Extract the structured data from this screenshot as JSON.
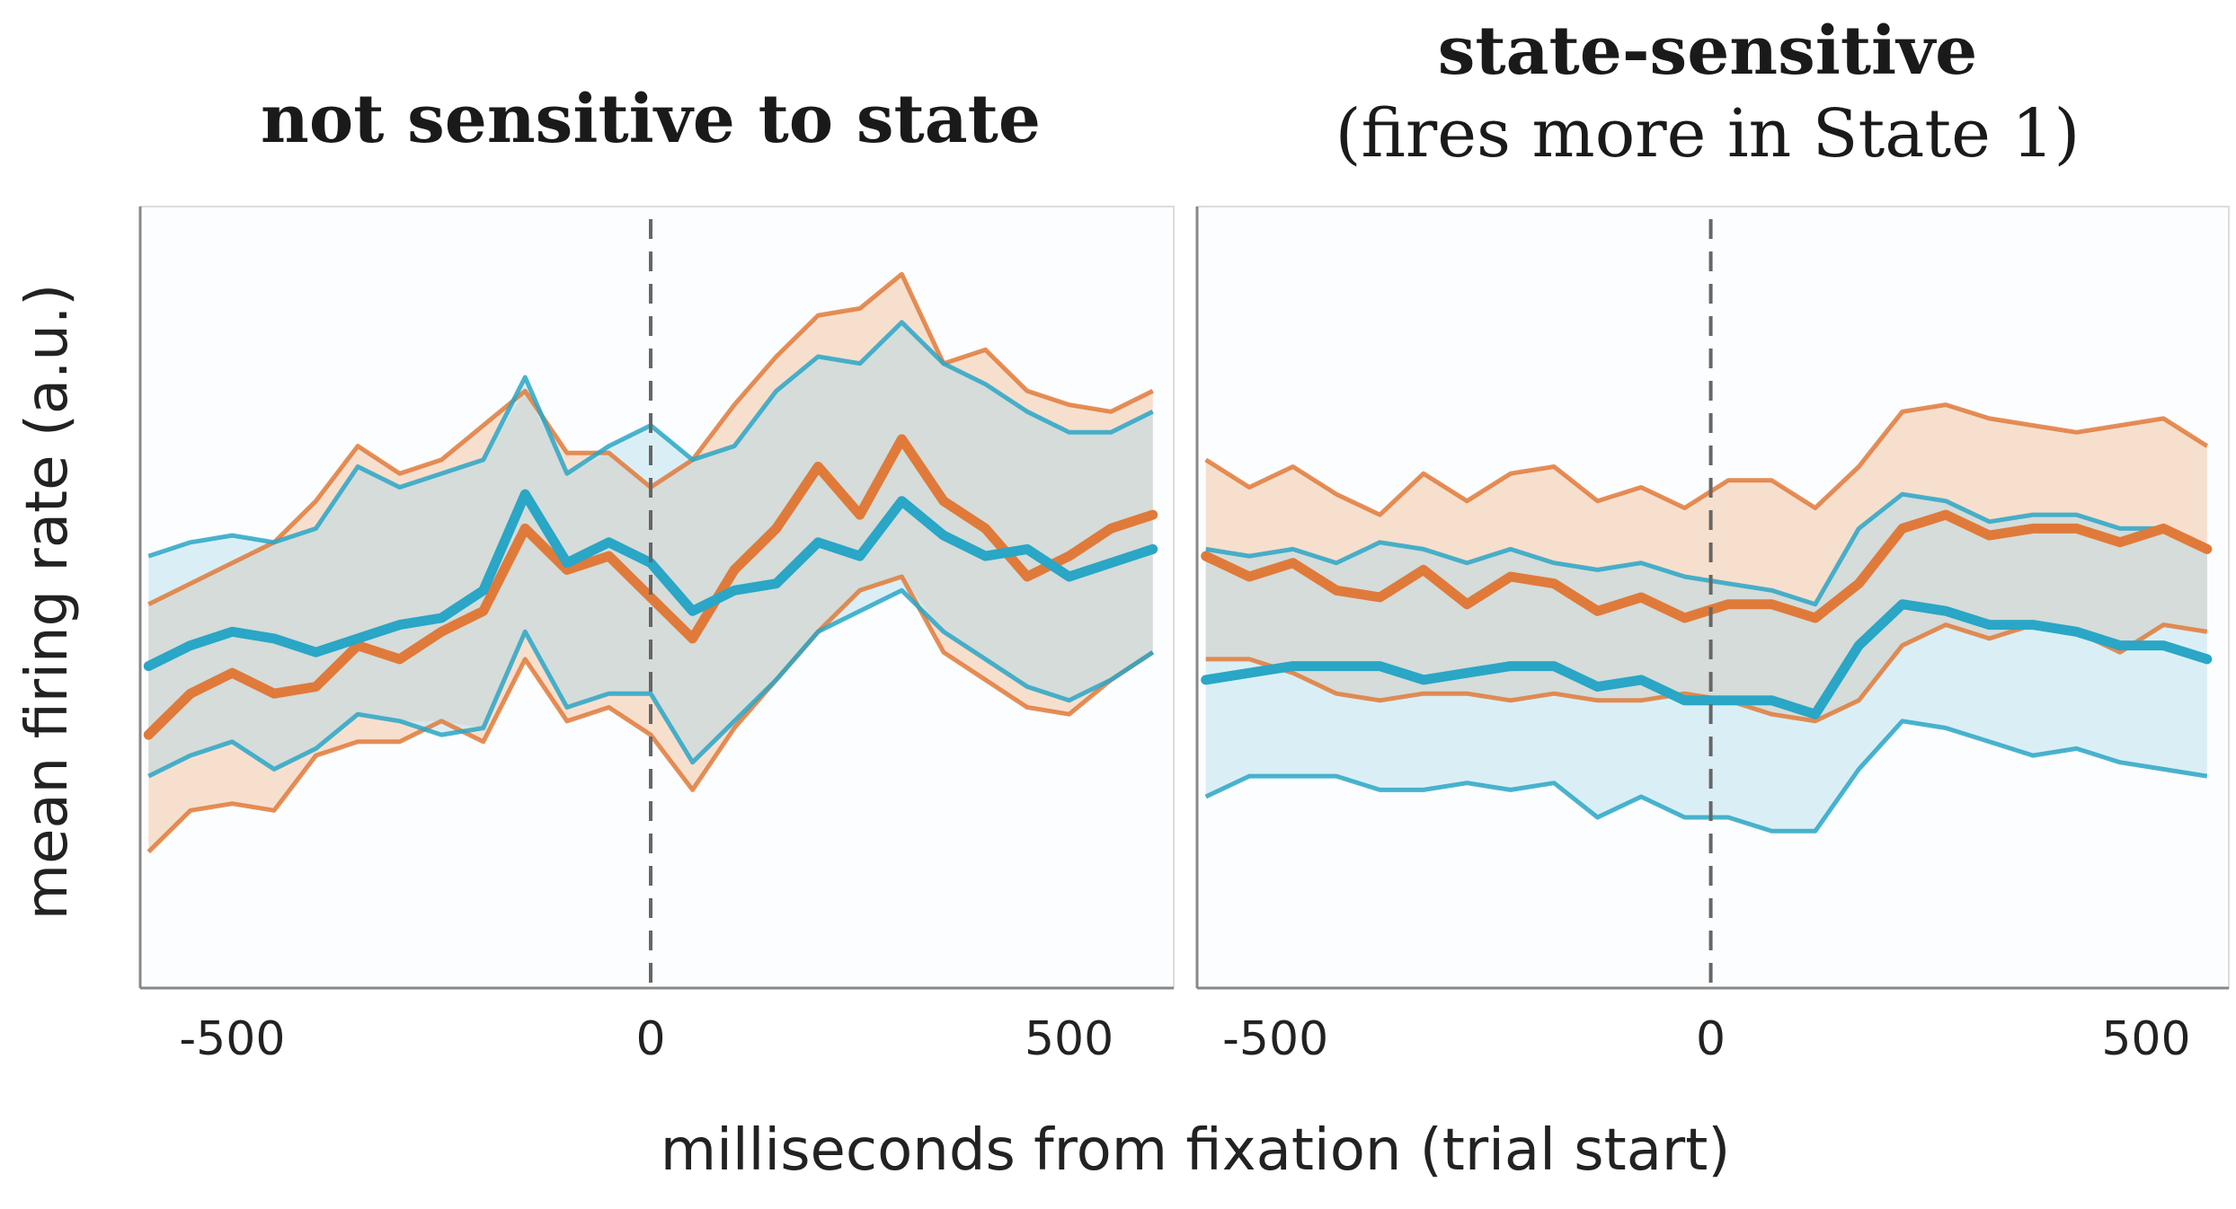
{
  "figure": {
    "ylabel": "mean firing rate (a.u.)",
    "xlabel": "milliseconds from fixation (trial start)"
  },
  "colors": {
    "orange": "#e07a3a",
    "orange_band": "#f6d9c5",
    "blue": "#2aa6c6",
    "blue_band": "#cfe9f1",
    "overlap": "#d2d4cc",
    "frame": "#888888",
    "marker": "#666666"
  },
  "chart_data": [
    {
      "type": "line",
      "title": "not sensitive to state",
      "subtitle": "",
      "x_ticks": [
        -500,
        0,
        500
      ],
      "xlim": [
        -610,
        625
      ],
      "ylim": [
        0,
        1
      ],
      "y_ticks_shown": false,
      "vline_x": 0,
      "x": [
        -600,
        -550,
        -500,
        -450,
        -400,
        -350,
        -300,
        -250,
        -200,
        -150,
        -100,
        -50,
        0,
        50,
        100,
        150,
        200,
        250,
        300,
        350,
        400,
        450,
        500,
        550,
        600
      ],
      "series": [
        {
          "color_key": "orange",
          "mean": [
            0.3,
            0.36,
            0.39,
            0.36,
            0.37,
            0.43,
            0.41,
            0.45,
            0.48,
            0.6,
            0.54,
            0.56,
            0.5,
            0.44,
            0.54,
            0.6,
            0.69,
            0.62,
            0.73,
            0.64,
            0.6,
            0.53,
            0.56,
            0.6,
            0.62
          ],
          "lower": [
            0.13,
            0.19,
            0.2,
            0.19,
            0.27,
            0.29,
            0.29,
            0.32,
            0.29,
            0.41,
            0.32,
            0.34,
            0.3,
            0.22,
            0.31,
            0.38,
            0.45,
            0.51,
            0.53,
            0.42,
            0.38,
            0.34,
            0.33,
            0.38,
            0.42
          ],
          "upper": [
            0.49,
            0.52,
            0.55,
            0.58,
            0.64,
            0.72,
            0.68,
            0.7,
            0.75,
            0.8,
            0.71,
            0.71,
            0.66,
            0.7,
            0.78,
            0.85,
            0.91,
            0.92,
            0.97,
            0.84,
            0.86,
            0.8,
            0.78,
            0.77,
            0.8
          ]
        },
        {
          "color_key": "blue",
          "mean": [
            0.4,
            0.43,
            0.45,
            0.44,
            0.42,
            0.44,
            0.46,
            0.47,
            0.51,
            0.65,
            0.55,
            0.58,
            0.55,
            0.48,
            0.51,
            0.52,
            0.58,
            0.56,
            0.64,
            0.59,
            0.56,
            0.57,
            0.53,
            0.55,
            0.57
          ],
          "lower": [
            0.24,
            0.27,
            0.29,
            0.25,
            0.28,
            0.33,
            0.32,
            0.3,
            0.31,
            0.45,
            0.34,
            0.36,
            0.36,
            0.26,
            0.32,
            0.38,
            0.45,
            0.48,
            0.51,
            0.45,
            0.41,
            0.37,
            0.35,
            0.38,
            0.42
          ],
          "upper": [
            0.56,
            0.58,
            0.59,
            0.58,
            0.6,
            0.69,
            0.66,
            0.68,
            0.7,
            0.82,
            0.68,
            0.72,
            0.75,
            0.7,
            0.72,
            0.8,
            0.85,
            0.84,
            0.9,
            0.84,
            0.81,
            0.77,
            0.74,
            0.74,
            0.77
          ]
        }
      ]
    },
    {
      "type": "line",
      "title": "state-sensitive",
      "subtitle": "(fires more in State 1)",
      "x_ticks": [
        -500,
        0,
        500
      ],
      "xlim": [
        -590,
        595
      ],
      "ylim": [
        0,
        1
      ],
      "y_ticks_shown": false,
      "vline_x": 0,
      "x": [
        -580,
        -530,
        -480,
        -430,
        -380,
        -330,
        -280,
        -230,
        -180,
        -130,
        -80,
        -30,
        20,
        70,
        120,
        170,
        220,
        270,
        320,
        370,
        420,
        470,
        520,
        570
      ],
      "series": [
        {
          "color_key": "orange",
          "mean": [
            0.56,
            0.53,
            0.55,
            0.51,
            0.5,
            0.54,
            0.49,
            0.53,
            0.52,
            0.48,
            0.5,
            0.47,
            0.49,
            0.49,
            0.47,
            0.52,
            0.6,
            0.62,
            0.59,
            0.6,
            0.6,
            0.58,
            0.6,
            0.57
          ],
          "lower": [
            0.41,
            0.41,
            0.39,
            0.36,
            0.35,
            0.36,
            0.36,
            0.35,
            0.36,
            0.35,
            0.35,
            0.36,
            0.35,
            0.33,
            0.32,
            0.35,
            0.43,
            0.46,
            0.44,
            0.46,
            0.45,
            0.42,
            0.46,
            0.45
          ],
          "upper": [
            0.7,
            0.66,
            0.69,
            0.65,
            0.62,
            0.68,
            0.64,
            0.68,
            0.69,
            0.64,
            0.66,
            0.63,
            0.67,
            0.67,
            0.63,
            0.69,
            0.77,
            0.78,
            0.76,
            0.75,
            0.74,
            0.75,
            0.76,
            0.72
          ]
        },
        {
          "color_key": "blue",
          "mean": [
            0.38,
            0.39,
            0.4,
            0.4,
            0.4,
            0.38,
            0.39,
            0.4,
            0.4,
            0.37,
            0.38,
            0.35,
            0.35,
            0.35,
            0.33,
            0.43,
            0.49,
            0.48,
            0.46,
            0.46,
            0.45,
            0.43,
            0.43,
            0.41
          ],
          "lower": [
            0.21,
            0.24,
            0.24,
            0.24,
            0.22,
            0.22,
            0.23,
            0.22,
            0.23,
            0.18,
            0.21,
            0.18,
            0.18,
            0.16,
            0.16,
            0.25,
            0.32,
            0.31,
            0.29,
            0.27,
            0.28,
            0.26,
            0.25,
            0.24
          ],
          "upper": [
            0.57,
            0.56,
            0.57,
            0.55,
            0.58,
            0.57,
            0.55,
            0.57,
            0.55,
            0.54,
            0.55,
            0.53,
            0.52,
            0.51,
            0.49,
            0.6,
            0.65,
            0.64,
            0.61,
            0.62,
            0.62,
            0.6,
            0.6,
            0.57
          ]
        }
      ]
    }
  ]
}
